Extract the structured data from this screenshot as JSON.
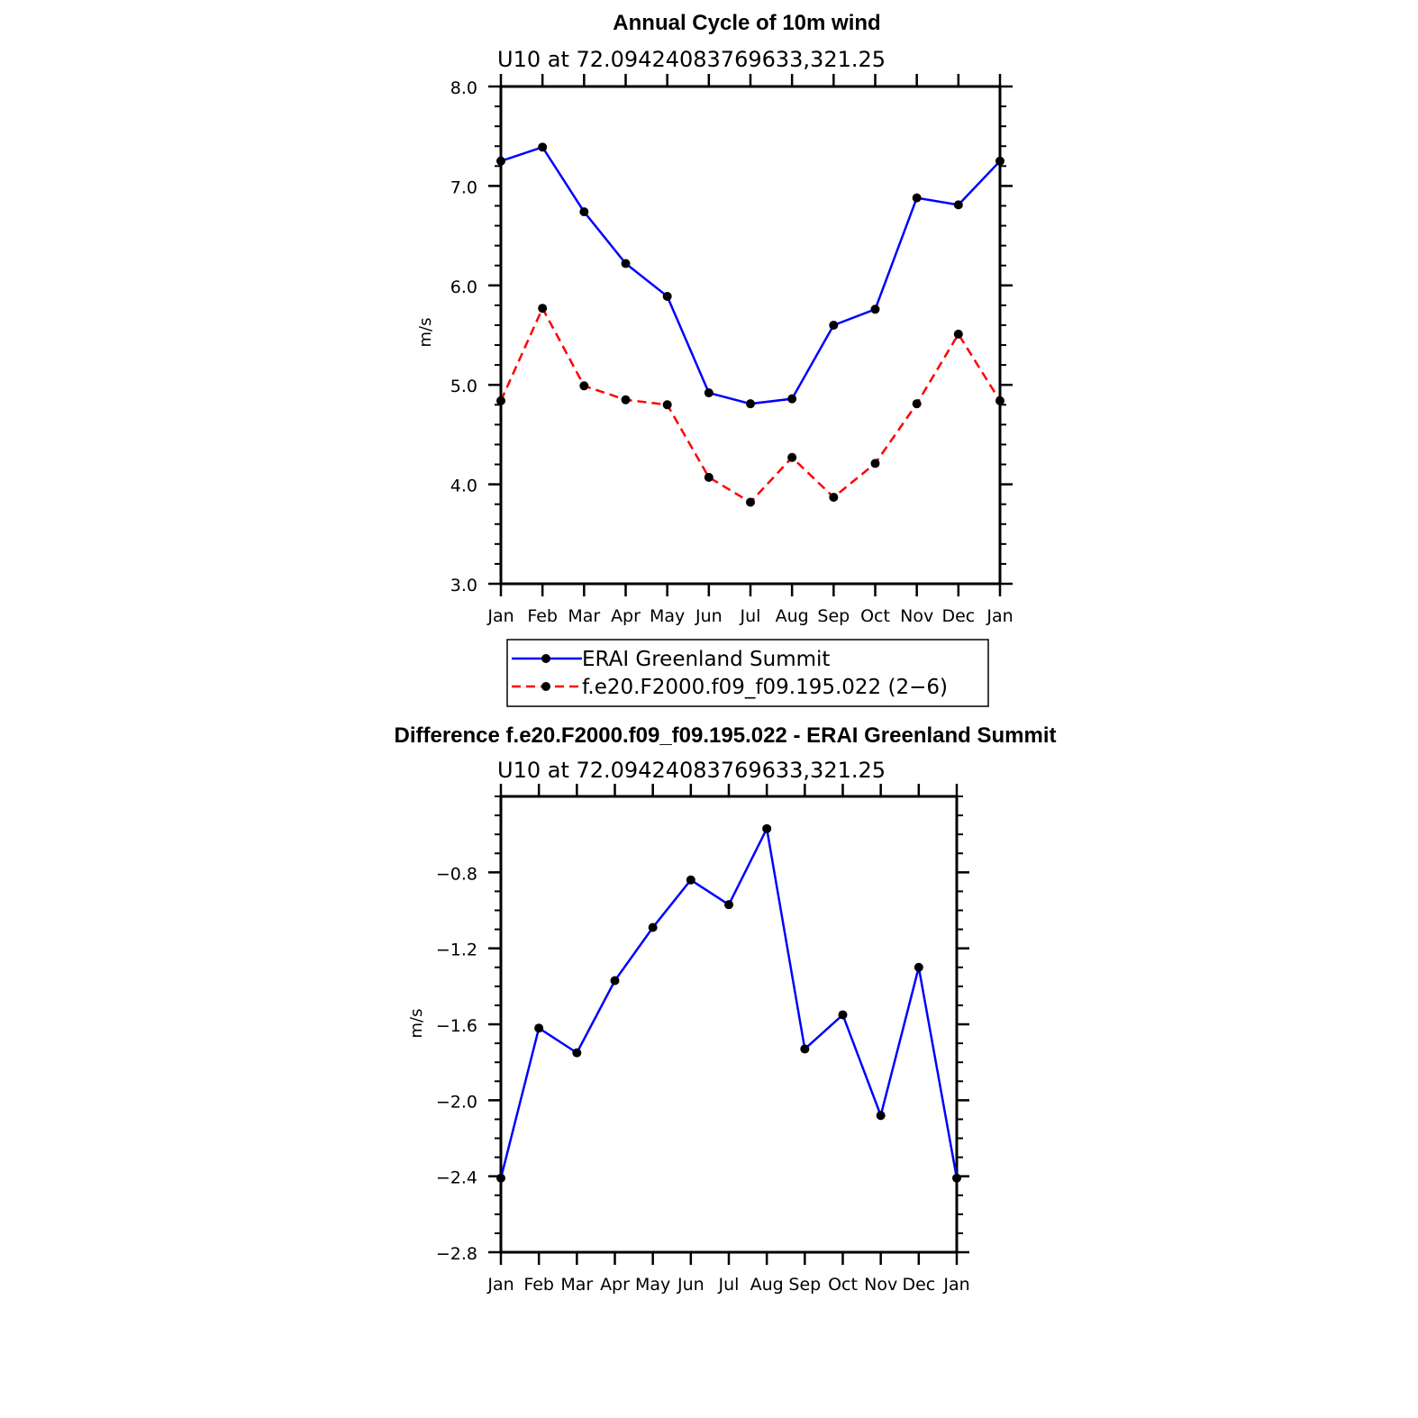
{
  "chart_data": [
    {
      "type": "line",
      "title": "Annual Cycle of 10m wind",
      "subtitle": "U10 at 72.09424083769633,321.25",
      "xlabel": "",
      "ylabel": "m/s",
      "categories": [
        "Jan",
        "Feb",
        "Mar",
        "Apr",
        "May",
        "Jun",
        "Jul",
        "Aug",
        "Sep",
        "Oct",
        "Nov",
        "Dec",
        "Jan"
      ],
      "ylim": [
        3.0,
        8.0
      ],
      "yticks": [
        3.0,
        4.0,
        5.0,
        6.0,
        7.0,
        8.0
      ],
      "ytick_labels": [
        "3.0",
        "4.0",
        "5.0",
        "6.0",
        "7.0",
        "8.0"
      ],
      "grid": false,
      "legend_position": "bottom",
      "series": [
        {
          "name": "ERAI Greenland Summit",
          "color": "#0000ff",
          "dash": "solid",
          "values": [
            7.25,
            7.39,
            6.74,
            6.22,
            5.89,
            4.92,
            4.81,
            4.86,
            5.6,
            5.76,
            6.88,
            6.81,
            7.25
          ]
        },
        {
          "name": "f.e20.F2000.f09_f09.195.022 (2−6)",
          "color": "#ff0000",
          "dash": "dashed",
          "values": [
            4.84,
            5.77,
            4.99,
            4.85,
            4.8,
            4.07,
            3.82,
            4.27,
            3.87,
            4.21,
            4.81,
            5.51,
            4.84
          ]
        }
      ]
    },
    {
      "type": "line",
      "title": "Difference f.e20.F2000.f09_f09.195.022 - ERAI Greenland Summit",
      "subtitle": "U10 at 72.09424083769633,321.25",
      "xlabel": "",
      "ylabel": "m/s",
      "categories": [
        "Jan",
        "Feb",
        "Mar",
        "Apr",
        "May",
        "Jun",
        "Jul",
        "Aug",
        "Sep",
        "Oct",
        "Nov",
        "Dec",
        "Jan"
      ],
      "ylim": [
        -2.8,
        -0.4
      ],
      "yticks": [
        -2.8,
        -2.4,
        -2.0,
        -1.6,
        -1.2,
        -0.8
      ],
      "ytick_labels": [
        "−2.8",
        "−2.4",
        "−2.0",
        "−1.6",
        "−1.2",
        "−0.8"
      ],
      "grid": false,
      "series": [
        {
          "name": "Difference",
          "color": "#0000ff",
          "dash": "solid",
          "values": [
            -2.41,
            -1.62,
            -1.75,
            -1.37,
            -1.09,
            -0.84,
            -0.97,
            -0.57,
            -1.73,
            -1.55,
            -2.08,
            -1.3,
            -2.41
          ]
        }
      ]
    }
  ]
}
